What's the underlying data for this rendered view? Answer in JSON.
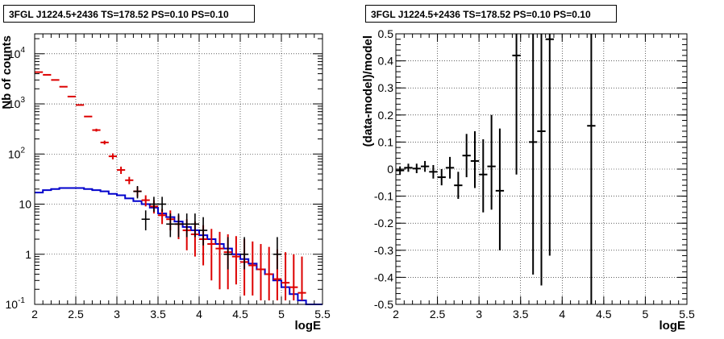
{
  "chart_data": [
    {
      "type": "scatter",
      "title": "3FGL J1224.5+2436 TS=178.52 PS=0.10 PS=0.10",
      "xlabel": "logE",
      "ylabel": "Nb of counts",
      "xlim": [
        2,
        5.5
      ],
      "ylim": [
        0.1,
        25000
      ],
      "yscale": "log",
      "grid": true,
      "x_ticks": [
        "2",
        "2.5",
        "3",
        "3.5",
        "4",
        "4.5",
        "5",
        "5.5"
      ],
      "y_ticks": [
        {
          "value": 0.1,
          "base": "10",
          "exp": "-1"
        },
        {
          "value": 1,
          "base": "1",
          "exp": ""
        },
        {
          "value": 10,
          "base": "10",
          "exp": ""
        },
        {
          "value": 100,
          "base": "10",
          "exp": "2"
        },
        {
          "value": 1000,
          "base": "10",
          "exp": "3"
        },
        {
          "value": 10000,
          "base": "10",
          "exp": "4"
        }
      ],
      "colors": {
        "model_points": "#dd0000",
        "model_line": "#0000cc",
        "data": "#000000"
      },
      "model_points": [
        {
          "x": 2.05,
          "y": 4300,
          "lo": 4300,
          "hi": 4300
        },
        {
          "x": 2.15,
          "y": 3800,
          "lo": 3800,
          "hi": 3800
        },
        {
          "x": 2.25,
          "y": 3000,
          "lo": 3000,
          "hi": 3000
        },
        {
          "x": 2.35,
          "y": 2200,
          "lo": 2200,
          "hi": 2200
        },
        {
          "x": 2.45,
          "y": 1400,
          "lo": 1400,
          "hi": 1400
        },
        {
          "x": 2.55,
          "y": 950,
          "lo": 950,
          "hi": 950
        },
        {
          "x": 2.65,
          "y": 560,
          "lo": 560,
          "hi": 560
        },
        {
          "x": 2.75,
          "y": 300,
          "lo": 280,
          "hi": 320
        },
        {
          "x": 2.85,
          "y": 170,
          "lo": 155,
          "hi": 185
        },
        {
          "x": 2.95,
          "y": 90,
          "lo": 78,
          "hi": 103
        },
        {
          "x": 3.05,
          "y": 48,
          "lo": 40,
          "hi": 56
        },
        {
          "x": 3.15,
          "y": 30,
          "lo": 25,
          "hi": 35
        },
        {
          "x": 3.25,
          "y": 18,
          "lo": 14,
          "hi": 22
        },
        {
          "x": 3.35,
          "y": 12,
          "lo": 9,
          "hi": 15
        },
        {
          "x": 3.45,
          "y": 9,
          "lo": 6.5,
          "hi": 12
        },
        {
          "x": 3.55,
          "y": 6,
          "lo": 4,
          "hi": 8
        },
        {
          "x": 3.65,
          "y": 5,
          "lo": 3,
          "hi": 7.5
        },
        {
          "x": 3.75,
          "y": 4,
          "lo": 2,
          "hi": 6
        },
        {
          "x": 3.85,
          "y": 3,
          "lo": 1.2,
          "hi": 5
        },
        {
          "x": 3.95,
          "y": 2.5,
          "lo": 0.9,
          "hi": 4.5
        },
        {
          "x": 4.05,
          "y": 2,
          "lo": 0.6,
          "hi": 3.8
        },
        {
          "x": 4.15,
          "y": 1.6,
          "lo": 0.3,
          "hi": 3.2
        },
        {
          "x": 4.25,
          "y": 1.3,
          "lo": 0.2,
          "hi": 2.8
        },
        {
          "x": 4.35,
          "y": 1.1,
          "lo": 0.2,
          "hi": 2.5
        },
        {
          "x": 4.45,
          "y": 0.9,
          "lo": 0.25,
          "hi": 2.3
        },
        {
          "x": 4.55,
          "y": 0.7,
          "lo": 0.15,
          "hi": 2
        },
        {
          "x": 4.65,
          "y": 0.6,
          "lo": 0.15,
          "hi": 1.8
        },
        {
          "x": 4.75,
          "y": 0.5,
          "lo": 0.12,
          "hi": 1.6
        },
        {
          "x": 4.85,
          "y": 0.4,
          "lo": 0.12,
          "hi": 1.4
        },
        {
          "x": 4.95,
          "y": 0.32,
          "lo": 0.12,
          "hi": 1.25
        },
        {
          "x": 5.05,
          "y": 0.27,
          "lo": 0.12,
          "hi": 1.1
        },
        {
          "x": 5.15,
          "y": 0.22,
          "lo": 0.12,
          "hi": 1
        },
        {
          "x": 5.25,
          "y": 0.17,
          "lo": 0.12,
          "hi": 0.9
        }
      ],
      "data_points": [
        {
          "x": 3.25,
          "y": 18,
          "lo": 13,
          "hi": 23
        },
        {
          "x": 3.35,
          "y": 5,
          "lo": 3,
          "hi": 7.5
        },
        {
          "x": 3.45,
          "y": 10,
          "lo": 7,
          "hi": 14
        },
        {
          "x": 3.55,
          "y": 10,
          "lo": 7,
          "hi": 14
        },
        {
          "x": 3.65,
          "y": 4,
          "lo": 2.2,
          "hi": 6.5
        },
        {
          "x": 3.75,
          "y": 4,
          "lo": 2.2,
          "hi": 6.5
        },
        {
          "x": 3.85,
          "y": 4,
          "lo": 2.2,
          "hi": 6.5
        },
        {
          "x": 3.95,
          "y": 4,
          "lo": 2.2,
          "hi": 6.5
        },
        {
          "x": 4.05,
          "y": 3,
          "lo": 1.5,
          "hi": 5.5
        },
        {
          "x": 4.35,
          "y": 1,
          "lo": 0.5,
          "hi": 2.2
        },
        {
          "x": 4.55,
          "y": 1,
          "lo": 0.5,
          "hi": 2.2
        },
        {
          "x": 4.95,
          "y": 1,
          "lo": 0.5,
          "hi": 2.2
        }
      ],
      "model_curve": {
        "edges": [
          2.0,
          2.1,
          2.2,
          2.3,
          2.4,
          2.5,
          2.6,
          2.7,
          2.8,
          2.9,
          3.0,
          3.1,
          3.2,
          3.3,
          3.4,
          3.5,
          3.6,
          3.7,
          3.8,
          3.9,
          4.0,
          4.1,
          4.2,
          4.3,
          4.4,
          4.5,
          4.6,
          4.7,
          4.8,
          4.9,
          5.0,
          5.1,
          5.2,
          5.3,
          5.4,
          5.5
        ],
        "values": [
          17,
          19,
          20,
          21,
          21,
          21,
          20,
          19,
          18,
          16,
          15,
          13,
          11.5,
          10,
          8.5,
          6.5,
          5.5,
          4.5,
          3.5,
          3,
          2.4,
          2,
          1.6,
          1.3,
          1.0,
          0.8,
          0.65,
          0.5,
          0.4,
          0.3,
          0.22,
          0.16,
          0.12,
          0.1,
          0.1
        ]
      }
    },
    {
      "type": "scatter",
      "title": "3FGL J1224.5+2436 TS=178.52 PS=0.10 PS=0.10",
      "xlabel": "logE",
      "ylabel": "(data-model)/model",
      "xlim": [
        2,
        5.5
      ],
      "ylim": [
        -0.5,
        0.5
      ],
      "grid": true,
      "x_ticks": [
        "2",
        "2.5",
        "3",
        "3.5",
        "4",
        "4.5",
        "5",
        "5.5"
      ],
      "y_ticks": [
        "-0.5",
        "-0.4",
        "-0.3",
        "-0.2",
        "-0.1",
        "0",
        "0.1",
        "0.2",
        "0.3",
        "0.4",
        "0.5"
      ],
      "colors": {
        "data": "#000000"
      },
      "points": [
        {
          "x": 2.05,
          "y": -0.005,
          "lo": -0.02,
          "hi": 0.01
        },
        {
          "x": 2.15,
          "y": 0.005,
          "lo": -0.01,
          "hi": 0.02
        },
        {
          "x": 2.25,
          "y": 0.002,
          "lo": -0.015,
          "hi": 0.02
        },
        {
          "x": 2.35,
          "y": 0.01,
          "lo": -0.01,
          "hi": 0.03
        },
        {
          "x": 2.45,
          "y": -0.01,
          "lo": -0.035,
          "hi": 0.015
        },
        {
          "x": 2.55,
          "y": -0.03,
          "lo": -0.06,
          "hi": 0.0
        },
        {
          "x": 2.65,
          "y": 0.005,
          "lo": -0.035,
          "hi": 0.045
        },
        {
          "x": 2.75,
          "y": -0.06,
          "lo": -0.11,
          "hi": -0.01
        },
        {
          "x": 2.85,
          "y": 0.05,
          "lo": -0.03,
          "hi": 0.13
        },
        {
          "x": 2.95,
          "y": 0.03,
          "lo": -0.07,
          "hi": 0.14
        },
        {
          "x": 3.05,
          "y": -0.02,
          "lo": -0.16,
          "hi": 0.11
        },
        {
          "x": 3.15,
          "y": 0.01,
          "lo": -0.15,
          "hi": 0.2
        },
        {
          "x": 3.25,
          "y": -0.08,
          "lo": -0.3,
          "hi": 0.15
        },
        {
          "x": 3.45,
          "y": 0.42,
          "lo": -0.02,
          "hi": 0.5
        },
        {
          "x": 3.65,
          "y": 0.1,
          "lo": -0.39,
          "hi": 0.5
        },
        {
          "x": 3.75,
          "y": 0.14,
          "lo": -0.43,
          "hi": 0.5
        },
        {
          "x": 3.85,
          "y": 0.48,
          "lo": -0.32,
          "hi": 0.5
        },
        {
          "x": 4.35,
          "y": 0.16,
          "lo": -0.5,
          "hi": 0.5
        }
      ]
    }
  ]
}
